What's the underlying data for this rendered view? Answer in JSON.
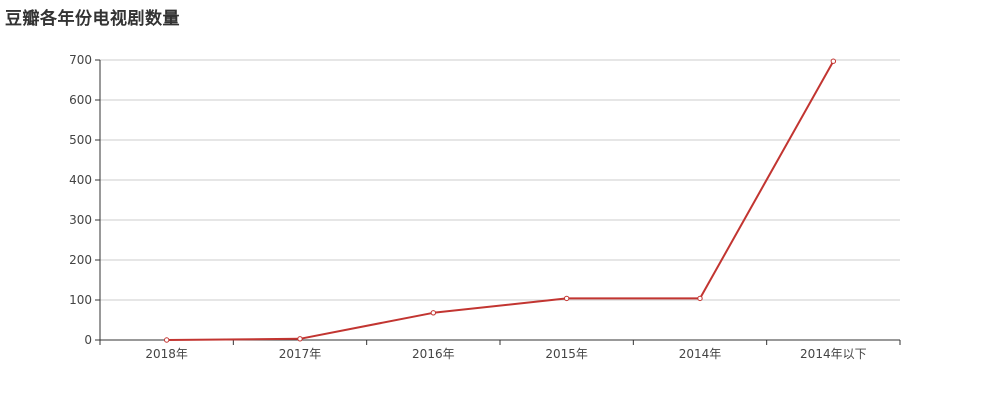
{
  "chart_data": {
    "type": "line",
    "title": "豆瓣各年份电视剧数量",
    "xlabel": "",
    "ylabel": "",
    "categories": [
      "2018年",
      "2017年",
      "2016年",
      "2015年",
      "2014年",
      "2014年以下"
    ],
    "values": [
      0,
      3,
      68,
      104,
      104,
      697
    ],
    "ylim": [
      0,
      700
    ],
    "yticks": [
      0,
      100,
      200,
      300,
      400,
      500,
      600,
      700
    ],
    "grid": true,
    "colors": {
      "line": "#c23531",
      "grid": "#cccccc",
      "axis": "#333333"
    }
  }
}
